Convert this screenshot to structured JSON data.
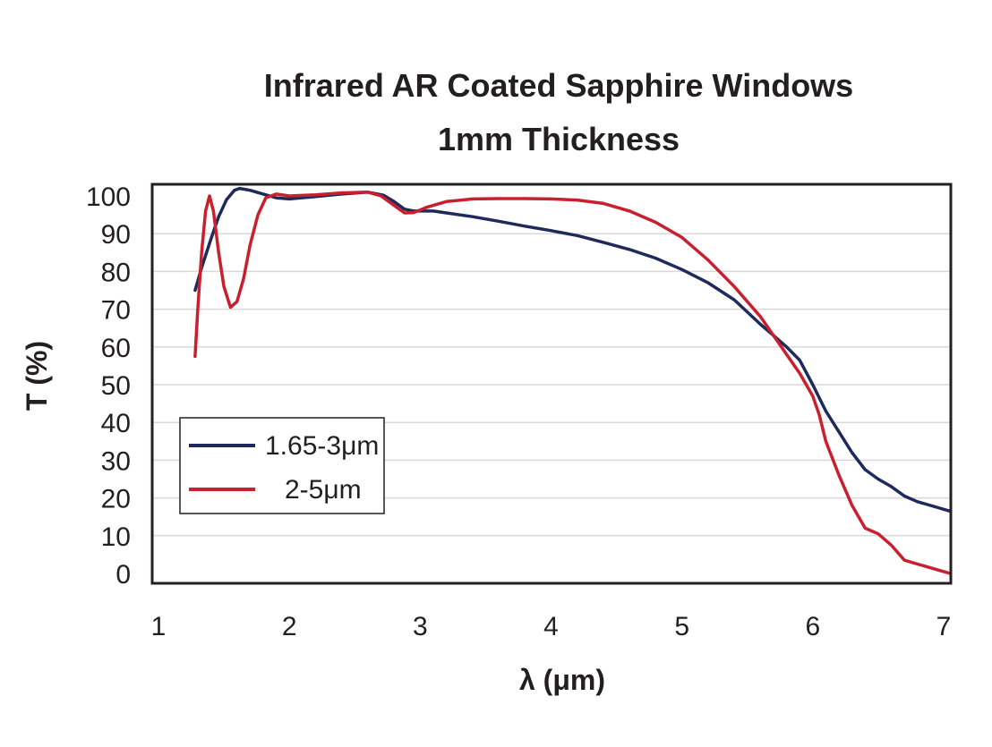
{
  "chart_data": {
    "type": "line",
    "title_lines": [
      "Infrared AR Coated Sapphire Windows",
      "1mm Thickness"
    ],
    "xlabel": "λ (μm)",
    "ylabel": "T (%)",
    "xlim": [
      1,
      7
    ],
    "ylim": [
      0,
      100
    ],
    "xticks": [
      1,
      2,
      3,
      4,
      5,
      6,
      7
    ],
    "yticks": [
      0,
      10,
      20,
      30,
      40,
      50,
      60,
      70,
      80,
      90,
      100
    ],
    "grid": "horizontal",
    "legend_position": "lower-left",
    "series": [
      {
        "name": "1.65-3μm",
        "color": "#1f2a5c",
        "points": [
          [
            1.28,
            75
          ],
          [
            1.33,
            81
          ],
          [
            1.4,
            88.5
          ],
          [
            1.46,
            94.5
          ],
          [
            1.52,
            99
          ],
          [
            1.58,
            101.5
          ],
          [
            1.62,
            102
          ],
          [
            1.7,
            101.5
          ],
          [
            1.8,
            100.5
          ],
          [
            1.9,
            99.5
          ],
          [
            2.0,
            99.2
          ],
          [
            2.2,
            99.8
          ],
          [
            2.4,
            100.5
          ],
          [
            2.6,
            101
          ],
          [
            2.72,
            100.2
          ],
          [
            2.8,
            98.5
          ],
          [
            2.88,
            96.5
          ],
          [
            2.95,
            96
          ],
          [
            3.1,
            96
          ],
          [
            3.2,
            95.5
          ],
          [
            3.4,
            94.5
          ],
          [
            3.6,
            93.3
          ],
          [
            3.8,
            92
          ],
          [
            4.0,
            90.8
          ],
          [
            4.2,
            89.5
          ],
          [
            4.4,
            87.7
          ],
          [
            4.6,
            85.8
          ],
          [
            4.8,
            83.5
          ],
          [
            5.0,
            80.5
          ],
          [
            5.2,
            77
          ],
          [
            5.4,
            72.5
          ],
          [
            5.6,
            66
          ],
          [
            5.7,
            63
          ],
          [
            5.8,
            60
          ],
          [
            5.9,
            56.5
          ],
          [
            6.0,
            50
          ],
          [
            6.1,
            43
          ],
          [
            6.2,
            37.5
          ],
          [
            6.3,
            32
          ],
          [
            6.4,
            27.5
          ],
          [
            6.5,
            25
          ],
          [
            6.6,
            23
          ],
          [
            6.7,
            20.5
          ],
          [
            6.8,
            19
          ],
          [
            6.9,
            18
          ],
          [
            7.05,
            16.5
          ]
        ]
      },
      {
        "name": "2-5μm",
        "color": "#c8202f",
        "points": [
          [
            1.28,
            57.5
          ],
          [
            1.3,
            70
          ],
          [
            1.33,
            85
          ],
          [
            1.36,
            96
          ],
          [
            1.39,
            100
          ],
          [
            1.42,
            96
          ],
          [
            1.46,
            85
          ],
          [
            1.5,
            76
          ],
          [
            1.55,
            70.5
          ],
          [
            1.6,
            72
          ],
          [
            1.65,
            78
          ],
          [
            1.7,
            87
          ],
          [
            1.76,
            95
          ],
          [
            1.82,
            99.5
          ],
          [
            1.9,
            100.5
          ],
          [
            2.0,
            100
          ],
          [
            2.2,
            100.3
          ],
          [
            2.4,
            100.8
          ],
          [
            2.6,
            101
          ],
          [
            2.7,
            100
          ],
          [
            2.8,
            97.5
          ],
          [
            2.88,
            95.5
          ],
          [
            2.95,
            95.6
          ],
          [
            3.05,
            97
          ],
          [
            3.2,
            98.5
          ],
          [
            3.4,
            99.2
          ],
          [
            3.6,
            99.3
          ],
          [
            3.8,
            99.3
          ],
          [
            4.0,
            99.2
          ],
          [
            4.2,
            98.9
          ],
          [
            4.4,
            98
          ],
          [
            4.6,
            96
          ],
          [
            4.8,
            93
          ],
          [
            5.0,
            89
          ],
          [
            5.2,
            83
          ],
          [
            5.4,
            76
          ],
          [
            5.5,
            72
          ],
          [
            5.6,
            68
          ],
          [
            5.7,
            63
          ],
          [
            5.8,
            58
          ],
          [
            5.9,
            53
          ],
          [
            6.0,
            47
          ],
          [
            6.05,
            42
          ],
          [
            6.1,
            35
          ],
          [
            6.2,
            26
          ],
          [
            6.3,
            18
          ],
          [
            6.4,
            12
          ],
          [
            6.5,
            10.5
          ],
          [
            6.6,
            7.5
          ],
          [
            6.7,
            3.5
          ],
          [
            6.8,
            2.5
          ],
          [
            6.9,
            1.5
          ],
          [
            7.0,
            0.5
          ],
          [
            7.05,
            0
          ]
        ]
      }
    ]
  }
}
